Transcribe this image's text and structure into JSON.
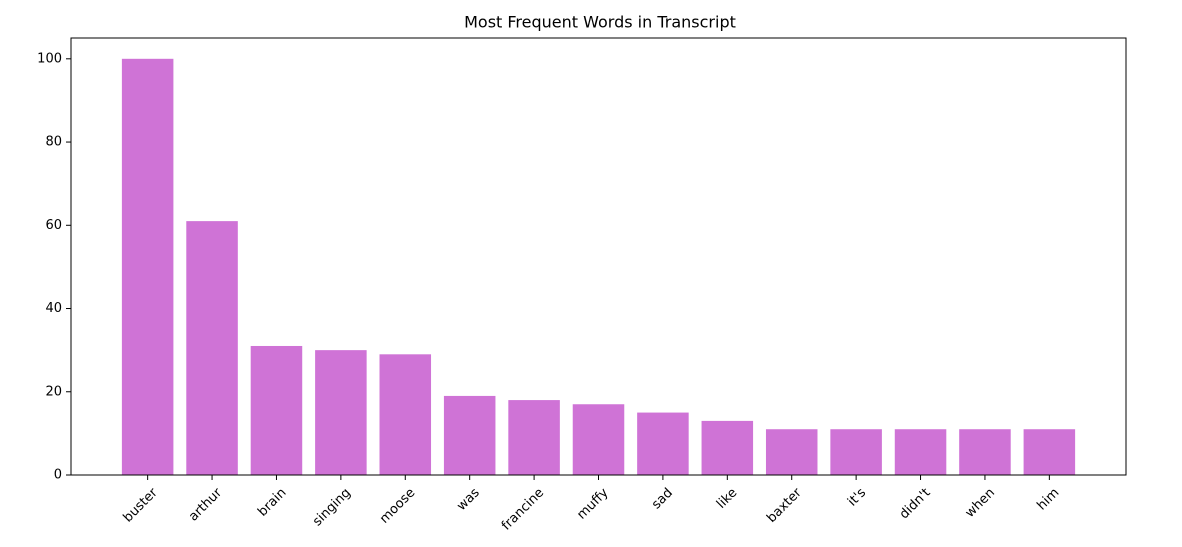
{
  "chart_data": {
    "type": "bar",
    "title": "Most Frequent Words in Transcript",
    "categories": [
      "buster",
      "arthur",
      "brain",
      "singing",
      "moose",
      "was",
      "francine",
      "muffy",
      "sad",
      "like",
      "baxter",
      "it's",
      "didn't",
      "when",
      "him"
    ],
    "values": [
      100,
      61,
      31,
      30,
      29,
      19,
      18,
      17,
      15,
      13,
      11,
      11,
      11,
      11,
      11
    ],
    "color": "#cf73d6",
    "ylim": [
      0,
      105
    ],
    "yticks": [
      0,
      20,
      40,
      60,
      80,
      100
    ],
    "grid": false
  }
}
